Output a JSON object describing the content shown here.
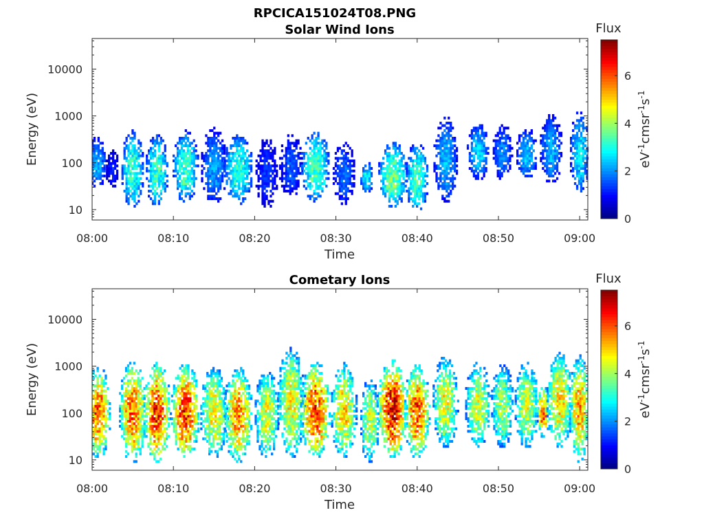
{
  "figure_title": "RPCICA151024T08.PNG",
  "chart_data": [
    {
      "type": "heatmap",
      "title": "Solar Wind Ions",
      "xlabel": "Time",
      "ylabel": "Energy (eV)",
      "x_ticks": [
        "08:00",
        "08:10",
        "08:20",
        "08:30",
        "08:40",
        "08:50",
        "09:00"
      ],
      "xlim_minutes": [
        0,
        61
      ],
      "y_scale": "log",
      "y_ticks": [
        "10",
        "100",
        "1000",
        "10000"
      ],
      "ylim": [
        6,
        45000
      ],
      "colorbar": {
        "title": "Flux",
        "label": "eV-1cm-2sr-1s-1",
        "ticks": [
          "0",
          "2",
          "4",
          "6"
        ],
        "range": [
          0,
          7.5
        ],
        "colormap": "jet"
      },
      "bursts": [
        {
          "t": 0.6,
          "w": 1.2,
          "elo": 40,
          "ehi": 250,
          "peak": 2.3
        },
        {
          "t": 2.5,
          "w": 0.8,
          "elo": 40,
          "ehi": 150,
          "peak": 1.2
        },
        {
          "t": 5.0,
          "w": 1.4,
          "elo": 15,
          "ehi": 350,
          "peak": 3.4
        },
        {
          "t": 8.0,
          "w": 1.4,
          "elo": 15,
          "ehi": 300,
          "peak": 3.4
        },
        {
          "t": 11.5,
          "w": 1.6,
          "elo": 20,
          "ehi": 350,
          "peak": 3.5
        },
        {
          "t": 15.0,
          "w": 1.6,
          "elo": 18,
          "ehi": 400,
          "peak": 2.2
        },
        {
          "t": 18.0,
          "w": 1.8,
          "elo": 18,
          "ehi": 300,
          "peak": 3.3
        },
        {
          "t": 21.5,
          "w": 1.4,
          "elo": 15,
          "ehi": 250,
          "peak": 1.4
        },
        {
          "t": 24.5,
          "w": 1.5,
          "elo": 25,
          "ehi": 300,
          "peak": 1.6
        },
        {
          "t": 27.5,
          "w": 1.8,
          "elo": 20,
          "ehi": 350,
          "peak": 3.6
        },
        {
          "t": 31.0,
          "w": 1.4,
          "elo": 18,
          "ehi": 200,
          "peak": 1.8
        },
        {
          "t": 33.8,
          "w": 0.8,
          "elo": 30,
          "ehi": 80,
          "peak": 2.8
        },
        {
          "t": 37.0,
          "w": 1.8,
          "elo": 15,
          "ehi": 200,
          "peak": 3.8
        },
        {
          "t": 40.0,
          "w": 1.4,
          "elo": 12,
          "ehi": 200,
          "peak": 3.5
        },
        {
          "t": 43.5,
          "w": 1.5,
          "elo": 20,
          "ehi": 700,
          "peak": 2.4
        },
        {
          "t": 47.5,
          "w": 1.4,
          "elo": 60,
          "ehi": 500,
          "peak": 2.6
        },
        {
          "t": 50.5,
          "w": 1.2,
          "elo": 60,
          "ehi": 500,
          "peak": 2.0
        },
        {
          "t": 53.5,
          "w": 1.3,
          "elo": 60,
          "ehi": 400,
          "peak": 2.4
        },
        {
          "t": 56.5,
          "w": 1.4,
          "elo": 50,
          "ehi": 800,
          "peak": 2.3
        },
        {
          "t": 60.0,
          "w": 1.2,
          "elo": 30,
          "ehi": 900,
          "peak": 2.8
        }
      ]
    },
    {
      "type": "heatmap",
      "title": "Cometary Ions",
      "xlabel": "Time",
      "ylabel": "Energy (eV)",
      "x_ticks": [
        "08:00",
        "08:10",
        "08:20",
        "08:30",
        "08:40",
        "08:50",
        "09:00"
      ],
      "xlim_minutes": [
        0,
        61
      ],
      "y_scale": "log",
      "y_ticks": [
        "10",
        "100",
        "1000",
        "10000"
      ],
      "ylim": [
        6,
        45000
      ],
      "colorbar": {
        "title": "Flux",
        "label": "eV-1cm-2sr-1s-1",
        "ticks": [
          "0",
          "2",
          "4",
          "6"
        ],
        "range": [
          0,
          7.5
        ],
        "colormap": "jet"
      },
      "bursts": [
        {
          "t": 0.8,
          "w": 1.5,
          "elo": 15,
          "ehi": 700,
          "peak": 6.2
        },
        {
          "t": 5.0,
          "w": 1.7,
          "elo": 12,
          "ehi": 1000,
          "peak": 6.0
        },
        {
          "t": 8.0,
          "w": 1.7,
          "elo": 12,
          "ehi": 900,
          "peak": 6.5
        },
        {
          "t": 11.5,
          "w": 1.8,
          "elo": 15,
          "ehi": 800,
          "peak": 6.6
        },
        {
          "t": 15.0,
          "w": 1.7,
          "elo": 15,
          "ehi": 700,
          "peak": 5.0
        },
        {
          "t": 18.0,
          "w": 1.8,
          "elo": 12,
          "ehi": 700,
          "peak": 5.8
        },
        {
          "t": 21.5,
          "w": 1.5,
          "elo": 15,
          "ehi": 600,
          "peak": 4.8
        },
        {
          "t": 24.5,
          "w": 1.7,
          "elo": 15,
          "ehi": 1800,
          "peak": 5.0
        },
        {
          "t": 27.5,
          "w": 1.9,
          "elo": 15,
          "ehi": 900,
          "peak": 6.4
        },
        {
          "t": 31.0,
          "w": 1.6,
          "elo": 15,
          "ehi": 900,
          "peak": 5.2
        },
        {
          "t": 34.2,
          "w": 1.2,
          "elo": 12,
          "ehi": 400,
          "peak": 4.6
        },
        {
          "t": 37.0,
          "w": 1.9,
          "elo": 15,
          "ehi": 1000,
          "peak": 7.0
        },
        {
          "t": 40.0,
          "w": 1.6,
          "elo": 15,
          "ehi": 800,
          "peak": 6.3
        },
        {
          "t": 43.5,
          "w": 1.6,
          "elo": 25,
          "ehi": 1200,
          "peak": 4.8
        },
        {
          "t": 47.5,
          "w": 1.6,
          "elo": 25,
          "ehi": 900,
          "peak": 4.6
        },
        {
          "t": 50.5,
          "w": 1.4,
          "elo": 25,
          "ehi": 800,
          "peak": 4.3
        },
        {
          "t": 53.5,
          "w": 1.5,
          "elo": 25,
          "ehi": 900,
          "peak": 4.6
        },
        {
          "t": 55.5,
          "w": 0.8,
          "elo": 40,
          "ehi": 300,
          "peak": 5.8
        },
        {
          "t": 57.5,
          "w": 1.6,
          "elo": 25,
          "ehi": 1500,
          "peak": 5.2
        },
        {
          "t": 60.0,
          "w": 1.3,
          "elo": 12,
          "ehi": 1200,
          "peak": 5.6
        }
      ]
    }
  ]
}
